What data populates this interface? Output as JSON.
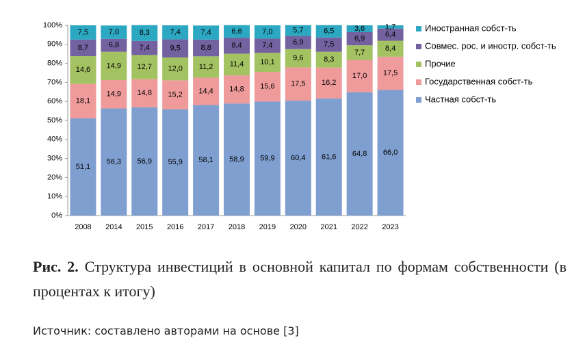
{
  "chart_data": {
    "type": "stacked_bar",
    "categories": [
      "2008",
      "2014",
      "2015",
      "2016",
      "2017",
      "2018",
      "2019",
      "2020",
      "2021",
      "2022",
      "2023"
    ],
    "series": [
      {
        "name": "Частная собст-ть",
        "color": "#7f9fd0",
        "values": [
          51.1,
          56.3,
          56.9,
          55.9,
          58.1,
          58.9,
          59.9,
          60.4,
          61.6,
          64.8,
          66.0
        ],
        "value_labels": [
          "51,1",
          "56,3",
          "56,9",
          "55,9",
          "58,1",
          "58,9",
          "59,9",
          "60,4",
          "61,6",
          "64,8",
          "66,0"
        ]
      },
      {
        "name": "Государственная собст-ть",
        "color": "#f09b9b",
        "values": [
          18.1,
          14.9,
          14.8,
          15.2,
          14.4,
          14.8,
          15.6,
          17.5,
          16.2,
          17.0,
          17.5
        ],
        "value_labels": [
          "18,1",
          "14,9",
          "14,8",
          "15,2",
          "14,4",
          "14,8",
          "15,6",
          "17,5",
          "16,2",
          "17,0",
          "17,5"
        ]
      },
      {
        "name": "Прочие",
        "color": "#a3c261",
        "values": [
          14.6,
          14.9,
          12.7,
          12.0,
          11.2,
          11.4,
          10.1,
          9.6,
          8.3,
          7.7,
          8.4
        ],
        "value_labels": [
          "14,6",
          "14,9",
          "12,7",
          "12,0",
          "11,2",
          "11,4",
          "10,1",
          "9,6",
          "8,3",
          "7,7",
          "8,4"
        ]
      },
      {
        "name": "Совмес. рос. и иностр. собст-ть",
        "color": "#7462a0",
        "values": [
          8.7,
          6.8,
          7.4,
          9.5,
          8.8,
          8.4,
          7.4,
          6.9,
          7.5,
          6.9,
          6.4
        ],
        "value_labels": [
          "8,7",
          "6,8",
          "7,4",
          "9,5",
          "8,8",
          "8,4",
          "7,4",
          "6,9",
          "7,5",
          "6,9",
          "6,4"
        ]
      },
      {
        "name": "Иностранная собст-ть",
        "color": "#2ca8c2",
        "values": [
          7.5,
          7.0,
          8.3,
          7.4,
          7.4,
          6.6,
          7.0,
          5.7,
          6.5,
          3.6,
          1.7
        ],
        "value_labels": [
          "7,5",
          "7,0",
          "8,3",
          "7,4",
          "7,4",
          "6,6",
          "7,0",
          "5,7",
          "6,5",
          "3,6",
          "1,7"
        ]
      }
    ],
    "ylim": [
      0,
      100
    ],
    "yticks": [
      {
        "value": 0,
        "label": "0%"
      },
      {
        "value": 10,
        "label": "10%"
      },
      {
        "value": 20,
        "label": "20%"
      },
      {
        "value": 30,
        "label": "30%"
      },
      {
        "value": 40,
        "label": "40%"
      },
      {
        "value": 50,
        "label": "50%"
      },
      {
        "value": 60,
        "label": "60%"
      },
      {
        "value": 70,
        "label": "70%"
      },
      {
        "value": 80,
        "label": "80%"
      },
      {
        "value": 90,
        "label": "90%"
      },
      {
        "value": 100,
        "label": "100%"
      }
    ],
    "grid": false,
    "legend": "right"
  },
  "caption": {
    "label": "Рис. 2.",
    "text": "Структура инвестиций в основной капитал по формам собственности (в процентах к итогу)"
  },
  "source": "Источник: составлено авторами на основе [3]"
}
